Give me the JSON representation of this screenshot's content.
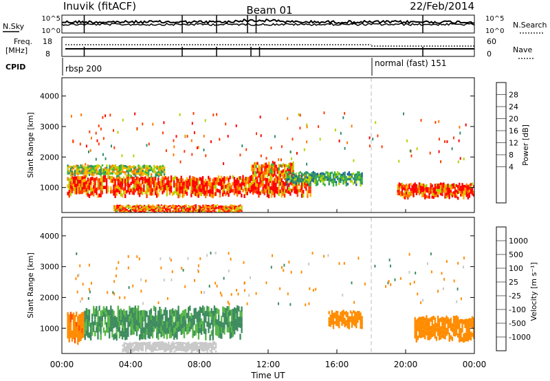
{
  "header": {
    "station": "Inuvik (fitACF)",
    "beam": "Beam 01",
    "date": "22/Feb/2014"
  },
  "noise_panel": {
    "left_label": "N.Sky",
    "right_label": "N.Search",
    "left_tick_top": "10^5",
    "left_tick_bottom": "10^0",
    "right_tick_top": "10^5",
    "right_tick_bottom": "10^0"
  },
  "freq_panel": {
    "left_label_1": "Freq.",
    "left_label_2": "[MHz]",
    "right_label": "Nave",
    "left_ticks": [
      "18",
      "8"
    ],
    "right_ticks": [
      "60",
      "0"
    ]
  },
  "cpid_panel": {
    "label": "CPID",
    "programs": [
      {
        "name": "rbsp 200",
        "start": "00:00"
      },
      {
        "name": "normal (fast) 151",
        "start": "18:00"
      }
    ]
  },
  "power_panel": {
    "ylabel": "Slant Range [km]",
    "colorbar_label": "Power [dB]",
    "colorbar_ticks": [
      "28",
      "24",
      "20",
      "16",
      "12",
      "8",
      "4"
    ],
    "colorbar_colors": [
      "#ff0000",
      "#ff3c00",
      "#ff7a00",
      "#ffb400",
      "#b4d200",
      "#3cb43c",
      "#2d8c6e",
      "#1e64a0",
      "#1428c8",
      "#0000ff"
    ]
  },
  "velocity_panel": {
    "ylabel": "Slant Range [km]",
    "colorbar_label": "Velocity [m s⁻¹]",
    "colorbar_ticks": [
      "1000",
      "500",
      "100",
      "25",
      "-25",
      "-100",
      "-500",
      "-1000"
    ],
    "colorbar_colors": [
      "#1f3fa8",
      "#2b6fb0",
      "#3f8c5f",
      "#5ab84a",
      "#c8c8c8",
      "#ffb400",
      "#ff8c00",
      "#ff5000",
      "#ff0000"
    ]
  },
  "x_axis": {
    "label": "Time UT",
    "ticks": [
      "00:00",
      "04:00",
      "08:00",
      "12:00",
      "16:00",
      "20:00",
      "00:00"
    ]
  },
  "chart_data": [
    {
      "type": "heatmap",
      "title": "Power",
      "xlabel": "Time UT",
      "ylabel": "Slant Range [km]",
      "xlim": [
        0,
        24
      ],
      "ylim": [
        180,
        4600
      ],
      "yticks": [
        1000,
        2000,
        3000,
        4000
      ],
      "clim": [
        0,
        30
      ],
      "units": "dB",
      "features": [
        {
          "t_start": 0.3,
          "t_end": 14.5,
          "range_center": 1050,
          "range_width": 600,
          "value": 26
        },
        {
          "t_start": 0.3,
          "t_end": 6.0,
          "range_center": 1550,
          "range_width": 350,
          "value": 16
        },
        {
          "t_start": 3.0,
          "t_end": 10.5,
          "range_center": 300,
          "range_width": 250,
          "value": 24
        },
        {
          "t_start": 11.0,
          "t_end": 13.5,
          "range_center": 1550,
          "range_width": 500,
          "value": 22
        },
        {
          "t_start": 13.0,
          "t_end": 17.5,
          "range_center": 1300,
          "range_width": 400,
          "value": 12
        },
        {
          "t_start": 19.5,
          "t_end": 24.0,
          "range_center": 900,
          "range_width": 450,
          "value": 27
        }
      ]
    },
    {
      "type": "heatmap",
      "title": "Velocity",
      "xlabel": "Time UT",
      "ylabel": "Slant Range [km]",
      "xlim": [
        0,
        24
      ],
      "ylim": [
        180,
        4600
      ],
      "yticks": [
        1000,
        2000,
        3000,
        4000
      ],
      "clim": [
        -1000,
        1000
      ],
      "units": "m s-1",
      "features": [
        {
          "t_start": 0.3,
          "t_end": 1.3,
          "range_center": 1000,
          "range_width": 900,
          "value": -400
        },
        {
          "t_start": 1.3,
          "t_end": 10.5,
          "range_center": 1200,
          "range_width": 900,
          "value": 120
        },
        {
          "t_start": 3.5,
          "t_end": 9.0,
          "range_center": 400,
          "range_width": 300,
          "value": 0
        },
        {
          "t_start": 15.5,
          "t_end": 17.5,
          "range_center": 1300,
          "range_width": 500,
          "value": -200
        },
        {
          "t_start": 20.5,
          "t_end": 24.0,
          "range_center": 1000,
          "range_width": 700,
          "value": -300
        }
      ]
    }
  ]
}
